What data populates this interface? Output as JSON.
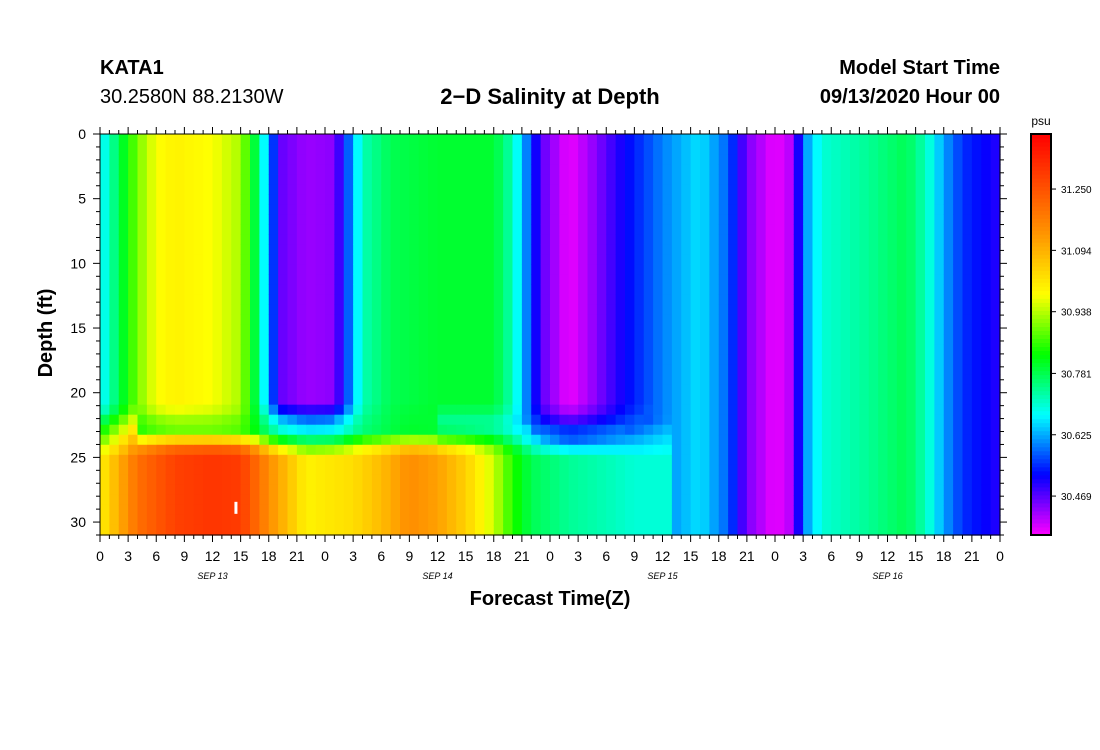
{
  "header": {
    "station_id": "KATA1",
    "coordinates": "30.2580N 88.2130W",
    "title": "2−D Salinity at Depth",
    "model_start_label": "Model Start Time",
    "model_start_value": "09/13/2020 Hour 00"
  },
  "chart_data": {
    "type": "heatmap",
    "title": "2−D Salinity at Depth",
    "xlabel": "Forecast Time(Z)",
    "ylabel": "Depth (ft)",
    "x_unit": "forecast hour from 09/13/2020 00Z",
    "xlim": [
      0,
      96
    ],
    "ylim": [
      0,
      31
    ],
    "y_inverted": true,
    "x_ticks": [
      0,
      3,
      6,
      9,
      12,
      15,
      18,
      21,
      24,
      27,
      30,
      33,
      36,
      39,
      42,
      45,
      48,
      51,
      54,
      57,
      60,
      63,
      66,
      69,
      72,
      75,
      78,
      81,
      84,
      87,
      90,
      93,
      96
    ],
    "x_tick_labels": [
      "0",
      "3",
      "6",
      "9",
      "12",
      "15",
      "18",
      "21",
      "0",
      "3",
      "6",
      "9",
      "12",
      "15",
      "18",
      "21",
      "0",
      "3",
      "6",
      "9",
      "12",
      "15",
      "18",
      "21",
      "0",
      "3",
      "6",
      "9",
      "12",
      "15",
      "18",
      "21",
      "0"
    ],
    "y_ticks": [
      0,
      5,
      10,
      15,
      20,
      25,
      30
    ],
    "y_tick_labels": [
      "0",
      "5",
      "10",
      "15",
      "20",
      "25",
      "30"
    ],
    "date_labels": [
      {
        "text": "SEP 13",
        "x": 12
      },
      {
        "text": "SEP 14",
        "x": 36
      },
      {
        "text": "SEP 15",
        "x": 60
      },
      {
        "text": "SEP 16",
        "x": 84
      }
    ],
    "colorbar": {
      "unit": "psu",
      "vmin": 30.37,
      "vmax": 31.39,
      "tick_values": [
        30.469,
        30.625,
        30.781,
        30.938,
        31.094,
        31.25
      ],
      "tick_labels": [
        "30.469",
        "30.625",
        "30.781",
        "30.938",
        "31.094",
        "31.250"
      ]
    },
    "marker": {
      "x": 14.5,
      "y": 28.9
    }
  }
}
